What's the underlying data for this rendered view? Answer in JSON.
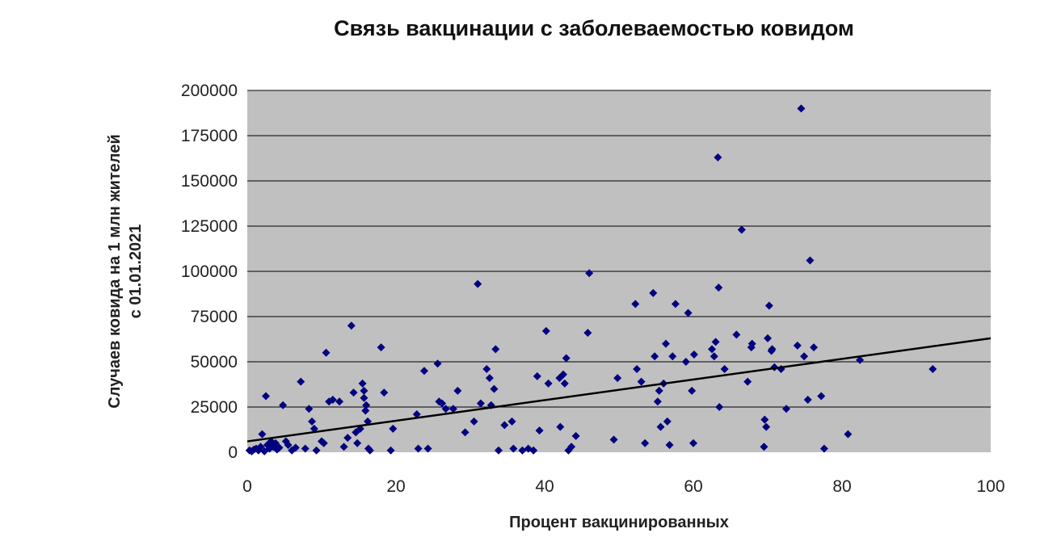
{
  "chart_data": {
    "type": "scatter",
    "title": "Связь вакцинации с заболеваемостью ковидом",
    "xlabel": "Процент вакцинированных",
    "ylabel_lines": [
      "Случаев ковида на 1 млн жителей",
      "с 01.01.2021"
    ],
    "xlim": [
      0,
      100
    ],
    "ylim": [
      0,
      200000
    ],
    "x_ticks": [
      0,
      20,
      40,
      60,
      80,
      100
    ],
    "y_ticks": [
      0,
      25000,
      50000,
      75000,
      100000,
      125000,
      150000,
      175000,
      200000
    ],
    "grid": "horizontal",
    "colors": {
      "plot_background": "#c0c0c0",
      "marker": "#000080",
      "trendline": "#000000",
      "gridline": "#000000"
    },
    "trendline": {
      "x": [
        0,
        100
      ],
      "y": [
        6000,
        63000
      ]
    },
    "points": [
      [
        0.3,
        1000
      ],
      [
        0.6,
        500
      ],
      [
        0.9,
        1500
      ],
      [
        1.2,
        2000
      ],
      [
        1.5,
        1000
      ],
      [
        1.8,
        3000
      ],
      [
        2.0,
        10000
      ],
      [
        2.3,
        500
      ],
      [
        2.5,
        31000
      ],
      [
        2.7,
        4000
      ],
      [
        3.0,
        2000
      ],
      [
        3.2,
        6000
      ],
      [
        3.5,
        3000
      ],
      [
        3.8,
        5000
      ],
      [
        4.0,
        1500
      ],
      [
        4.3,
        2500
      ],
      [
        4.8,
        26000
      ],
      [
        5.2,
        6000
      ],
      [
        5.5,
        4000
      ],
      [
        6.0,
        1000
      ],
      [
        6.5,
        2500
      ],
      [
        7.2,
        39000
      ],
      [
        7.8,
        2000
      ],
      [
        8.3,
        24000
      ],
      [
        8.7,
        17000
      ],
      [
        9.0,
        13000
      ],
      [
        9.3,
        1000
      ],
      [
        10.0,
        6000
      ],
      [
        10.3,
        5000
      ],
      [
        10.6,
        55000
      ],
      [
        11.0,
        28000
      ],
      [
        11.5,
        29000
      ],
      [
        12.4,
        28000
      ],
      [
        13.0,
        3000
      ],
      [
        13.5,
        8000
      ],
      [
        14.0,
        70000
      ],
      [
        14.3,
        33000
      ],
      [
        14.6,
        11000
      ],
      [
        14.8,
        5000
      ],
      [
        15.2,
        13000
      ],
      [
        15.5,
        38000
      ],
      [
        15.7,
        30000
      ],
      [
        16.0,
        26000
      ],
      [
        16.2,
        17000
      ],
      [
        16.5,
        1000
      ],
      [
        15.9,
        23000
      ],
      [
        15.7,
        34000
      ],
      [
        16.3,
        2000
      ],
      [
        18.0,
        58000
      ],
      [
        18.4,
        33000
      ],
      [
        19.3,
        1000
      ],
      [
        19.6,
        13000
      ],
      [
        22.8,
        21000
      ],
      [
        23.0,
        2000
      ],
      [
        23.8,
        45000
      ],
      [
        24.3,
        2000
      ],
      [
        25.6,
        49000
      ],
      [
        25.8,
        28000
      ],
      [
        26.2,
        27000
      ],
      [
        26.7,
        24000
      ],
      [
        27.7,
        24000
      ],
      [
        28.3,
        34000
      ],
      [
        29.3,
        11000
      ],
      [
        30.5,
        17000
      ],
      [
        31.0,
        93000
      ],
      [
        31.4,
        27000
      ],
      [
        32.2,
        46000
      ],
      [
        32.6,
        41000
      ],
      [
        32.8,
        26000
      ],
      [
        33.2,
        35000
      ],
      [
        33.4,
        57000
      ],
      [
        33.8,
        1000
      ],
      [
        34.6,
        15000
      ],
      [
        35.6,
        17000
      ],
      [
        35.8,
        2000
      ],
      [
        37.0,
        1000
      ],
      [
        37.8,
        2000
      ],
      [
        38.5,
        1000
      ],
      [
        39.0,
        42000
      ],
      [
        39.3,
        12000
      ],
      [
        40.2,
        67000
      ],
      [
        40.5,
        38000
      ],
      [
        42.0,
        41000
      ],
      [
        42.1,
        14000
      ],
      [
        42.5,
        43000
      ],
      [
        42.7,
        38000
      ],
      [
        42.9,
        52000
      ],
      [
        43.2,
        1000
      ],
      [
        43.6,
        3000
      ],
      [
        44.2,
        9000
      ],
      [
        46.0,
        99000
      ],
      [
        45.8,
        66000
      ],
      [
        49.3,
        7000
      ],
      [
        49.8,
        41000
      ],
      [
        52.2,
        82000
      ],
      [
        52.4,
        46000
      ],
      [
        53.0,
        39000
      ],
      [
        53.5,
        5000
      ],
      [
        54.6,
        88000
      ],
      [
        54.8,
        53000
      ],
      [
        55.2,
        28000
      ],
      [
        55.4,
        34000
      ],
      [
        55.6,
        14000
      ],
      [
        56.0,
        38000
      ],
      [
        56.3,
        60000
      ],
      [
        56.5,
        17000
      ],
      [
        56.8,
        4000
      ],
      [
        57.2,
        53000
      ],
      [
        57.6,
        82000
      ],
      [
        59.0,
        50000
      ],
      [
        59.3,
        77000
      ],
      [
        59.8,
        34000
      ],
      [
        60.0,
        5000
      ],
      [
        60.1,
        54000
      ],
      [
        62.5,
        57000
      ],
      [
        62.8,
        53000
      ],
      [
        63.0,
        61000
      ],
      [
        63.3,
        163000
      ],
      [
        63.4,
        91000
      ],
      [
        63.5,
        25000
      ],
      [
        64.2,
        46000
      ],
      [
        65.8,
        65000
      ],
      [
        66.5,
        123000
      ],
      [
        67.3,
        39000
      ],
      [
        67.8,
        58000
      ],
      [
        67.9,
        60000
      ],
      [
        69.5,
        3000
      ],
      [
        69.6,
        18000
      ],
      [
        69.8,
        14000
      ],
      [
        70.0,
        63000
      ],
      [
        70.2,
        81000
      ],
      [
        70.5,
        56000
      ],
      [
        70.6,
        57000
      ],
      [
        70.9,
        47000
      ],
      [
        71.8,
        46000
      ],
      [
        72.5,
        24000
      ],
      [
        74.0,
        59000
      ],
      [
        74.5,
        190000
      ],
      [
        74.9,
        53000
      ],
      [
        75.4,
        29000
      ],
      [
        75.7,
        106000
      ],
      [
        76.2,
        58000
      ],
      [
        77.2,
        31000
      ],
      [
        77.6,
        2000
      ],
      [
        80.8,
        10000
      ],
      [
        82.4,
        51000
      ],
      [
        92.2,
        46000
      ]
    ]
  }
}
